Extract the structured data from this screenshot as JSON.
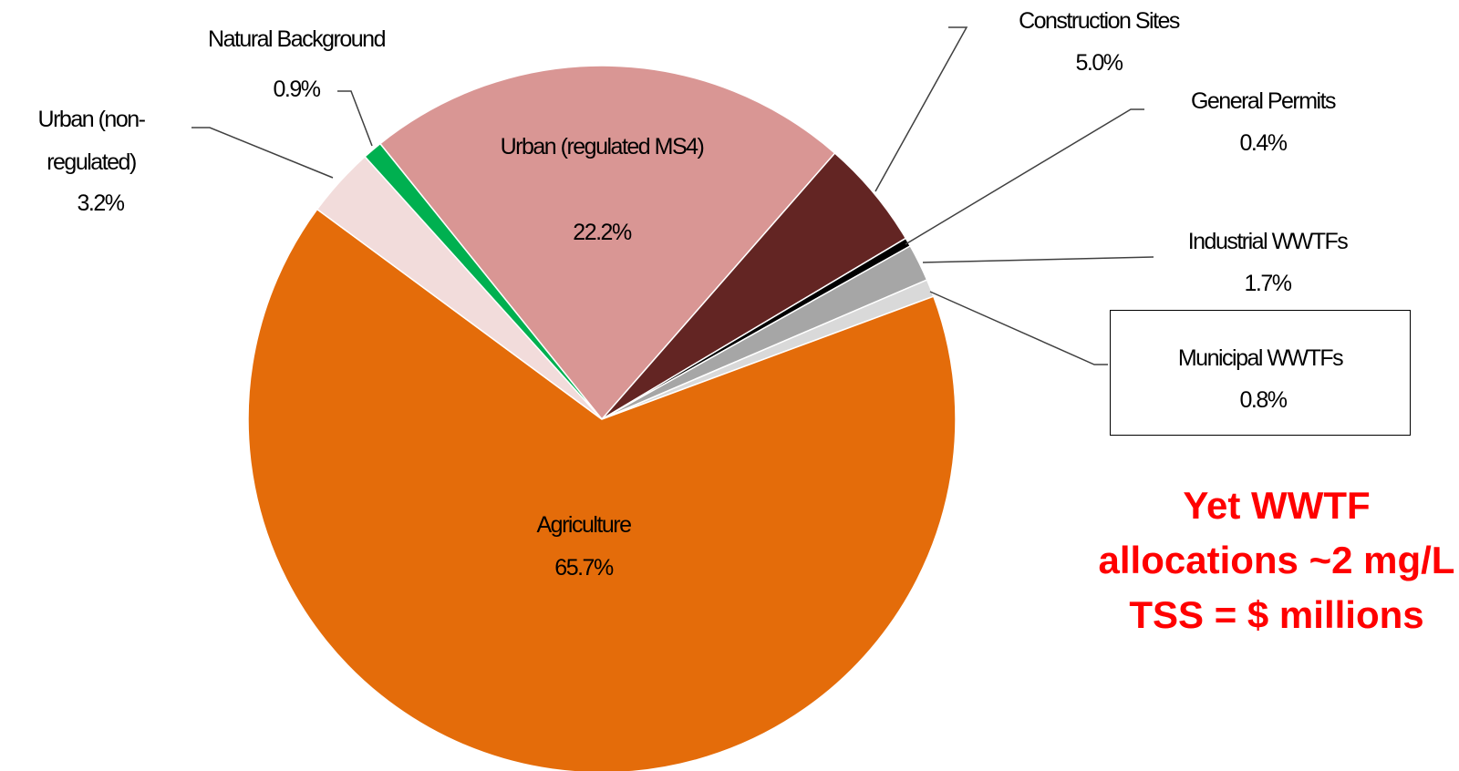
{
  "chart_data": {
    "type": "pie",
    "categories": [
      "Urban (regulated MS4)",
      "Construction Sites",
      "General Permits",
      "Industrial WWTFs",
      "Municipal WWTFs",
      "Agriculture",
      "Urban (non-regulated)",
      "Natural Background"
    ],
    "values": [
      22.2,
      5.0,
      0.4,
      1.7,
      0.8,
      65.7,
      3.2,
      0.9
    ],
    "value_labels": [
      "22.2%",
      "5.0%",
      "0.4%",
      "1.7%",
      "0.8%",
      "65.7%",
      "3.2%",
      "0.9%"
    ],
    "colors": [
      "#d99694",
      "#632523",
      "#000000",
      "#a6a6a6",
      "#d9d9d9",
      "#e46c0a",
      "#f2dcdb",
      "#00b050"
    ],
    "annotation": "Yet WWTF allocations ~2 mg/L TSS = $ millions"
  }
}
